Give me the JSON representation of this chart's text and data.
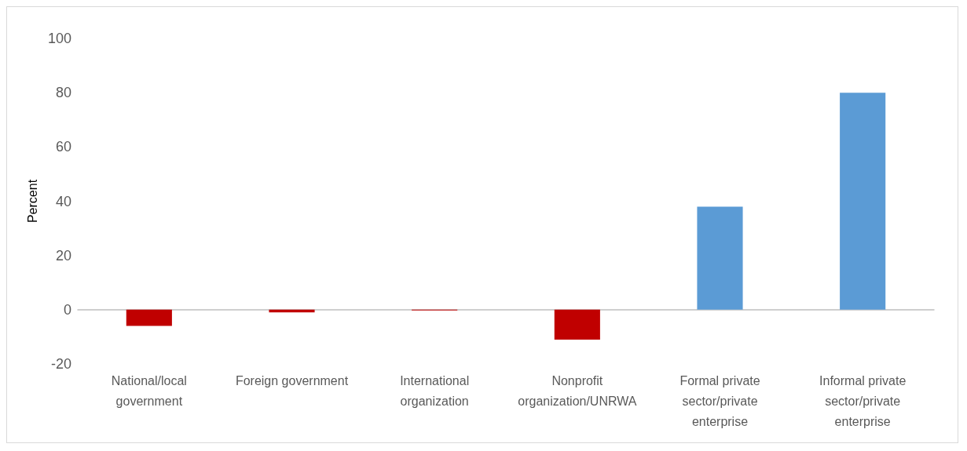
{
  "chart_data": {
    "type": "bar",
    "ylabel": "Percent",
    "categories": [
      "National/local government",
      "Foreign government",
      "International organization",
      "Nonprofit organization/UNRWA",
      "Formal private sector/private enterprise",
      "Informal private sector/private enterprise"
    ],
    "values": [
      -6,
      -1,
      -0.3,
      -11,
      38,
      80
    ],
    "colors": [
      "#c00000",
      "#c00000",
      "#c00000",
      "#c00000",
      "#5b9bd5",
      "#5b9bd5"
    ],
    "ylim": [
      -20,
      100
    ],
    "yticks": [
      -20,
      0,
      20,
      40,
      60,
      80,
      100
    ]
  }
}
